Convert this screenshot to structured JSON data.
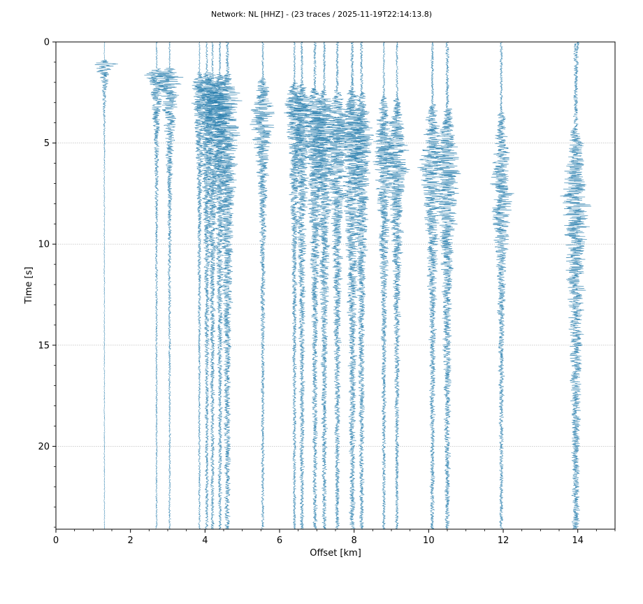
{
  "chart_data": {
    "type": "line",
    "title": "Network: NL [HHZ] - (23 traces / 2025-11-19T22:14:13.8)",
    "xlabel": "Offset [km]",
    "ylabel": "Time [s]",
    "xlim": [
      0,
      15
    ],
    "ylim": [
      24.1,
      0
    ],
    "y_inverted": true,
    "grid": "horizontal",
    "x_ticks": [
      0,
      2,
      4,
      6,
      8,
      10,
      12,
      14
    ],
    "x_tick_labels": [
      "0",
      "2",
      "4",
      "6",
      "8",
      "10",
      "12",
      "14"
    ],
    "y_ticks": [
      0,
      5,
      10,
      15,
      20
    ],
    "y_tick_labels": [
      "0",
      "5",
      "10",
      "15",
      "20"
    ],
    "trace_color": "#2a7fae",
    "traces": [
      {
        "offset": 1.3,
        "t_end": 24.1,
        "onset": 0.9,
        "peak": 1.1,
        "amp": 0.36,
        "decay": 0.5,
        "noise": 0.02
      },
      {
        "offset": 2.7,
        "t_end": 24.1,
        "onset": 1.3,
        "peak": 1.5,
        "amp": 0.3,
        "decay": 1.5,
        "noise": 0.03
      },
      {
        "offset": 3.05,
        "t_end": 24.1,
        "onset": 1.3,
        "peak": 1.6,
        "amp": 0.4,
        "decay": 1.8,
        "noise": 0.03
      },
      {
        "offset": 3.85,
        "t_end": 24.1,
        "onset": 1.5,
        "peak": 2.0,
        "amp": 0.2,
        "decay": 3.0,
        "noise": 0.03
      },
      {
        "offset": 4.05,
        "t_end": 24.1,
        "onset": 1.5,
        "peak": 2.3,
        "amp": 0.3,
        "decay": 3.5,
        "noise": 0.04
      },
      {
        "offset": 4.2,
        "t_end": 24.1,
        "onset": 1.6,
        "peak": 2.6,
        "amp": 0.3,
        "decay": 4.0,
        "noise": 0.04
      },
      {
        "offset": 4.4,
        "t_end": 24.1,
        "onset": 1.6,
        "peak": 2.8,
        "amp": 0.32,
        "decay": 4.0,
        "noise": 0.04
      },
      {
        "offset": 4.6,
        "t_end": 24.1,
        "onset": 1.6,
        "peak": 3.0,
        "amp": 0.36,
        "decay": 5.0,
        "noise": 0.06
      },
      {
        "offset": 5.55,
        "t_end": 24.1,
        "onset": 1.8,
        "peak": 3.5,
        "amp": 0.36,
        "decay": 2.5,
        "noise": 0.04
      },
      {
        "offset": 6.4,
        "t_end": 24.1,
        "onset": 2.0,
        "peak": 2.9,
        "amp": 0.26,
        "decay": 3.5,
        "noise": 0.04
      },
      {
        "offset": 6.6,
        "t_end": 24.1,
        "onset": 2.1,
        "peak": 3.2,
        "amp": 0.3,
        "decay": 4.0,
        "noise": 0.05
      },
      {
        "offset": 6.95,
        "t_end": 24.1,
        "onset": 2.3,
        "peak": 3.8,
        "amp": 0.34,
        "decay": 4.0,
        "noise": 0.05
      },
      {
        "offset": 7.2,
        "t_end": 24.1,
        "onset": 2.4,
        "peak": 4.1,
        "amp": 0.36,
        "decay": 4.0,
        "noise": 0.05
      },
      {
        "offset": 7.55,
        "t_end": 24.1,
        "onset": 2.4,
        "peak": 4.3,
        "amp": 0.32,
        "decay": 4.5,
        "noise": 0.05
      },
      {
        "offset": 7.95,
        "t_end": 24.1,
        "onset": 2.4,
        "peak": 4.5,
        "amp": 0.36,
        "decay": 4.5,
        "noise": 0.06
      },
      {
        "offset": 8.2,
        "t_end": 24.1,
        "onset": 2.5,
        "peak": 4.8,
        "amp": 0.3,
        "decay": 4.5,
        "noise": 0.05
      },
      {
        "offset": 8.8,
        "t_end": 24.1,
        "onset": 2.7,
        "peak": 5.4,
        "amp": 0.3,
        "decay": 3.5,
        "noise": 0.04
      },
      {
        "offset": 9.15,
        "t_end": 24.1,
        "onset": 2.8,
        "peak": 5.8,
        "amp": 0.34,
        "decay": 3.5,
        "noise": 0.04
      },
      {
        "offset": 10.1,
        "t_end": 24.1,
        "onset": 3.1,
        "peak": 6.0,
        "amp": 0.34,
        "decay": 3.5,
        "noise": 0.05
      },
      {
        "offset": 10.5,
        "t_end": 24.1,
        "onset": 3.3,
        "peak": 6.2,
        "amp": 0.36,
        "decay": 4.0,
        "noise": 0.06
      },
      {
        "offset": 11.95,
        "t_end": 24.1,
        "onset": 3.5,
        "peak": 7.5,
        "amp": 0.3,
        "decay": 3.0,
        "noise": 0.05
      },
      {
        "offset": 13.95,
        "t_end": 24.1,
        "onset": 4.3,
        "peak": 7.6,
        "amp": 0.36,
        "decay": 5.0,
        "noise": 0.08
      },
      {
        "offset": 14.0,
        "t_end": 0.4,
        "onset": 0.0,
        "peak": 0.2,
        "amp": 0.0,
        "decay": 1.0,
        "noise": 0.05
      }
    ]
  }
}
